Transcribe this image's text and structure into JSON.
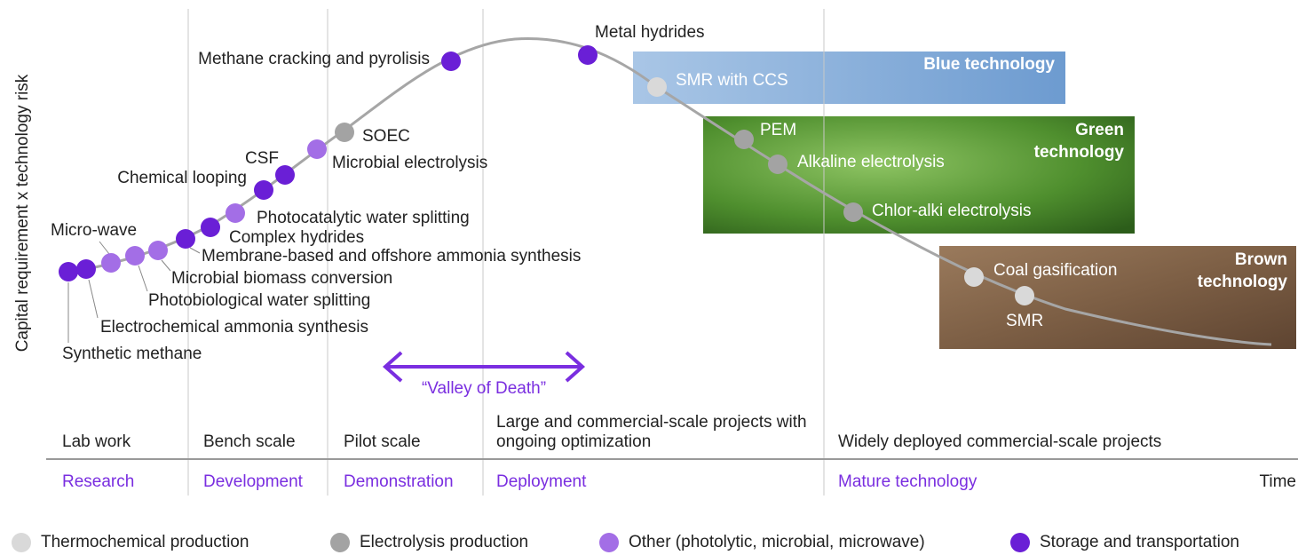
{
  "y_axis_label": "Capital requirement x technology risk",
  "x_axis_label": "Time",
  "valley_label": "“Valley of Death”",
  "stages": [
    {
      "name": "Lab work",
      "phase": "Research"
    },
    {
      "name": "Bench scale",
      "phase": "Development"
    },
    {
      "name": "Pilot scale",
      "phase": "Demonstration"
    },
    {
      "name": "Large and commercial-scale projects with ongoing optimization",
      "phase": "Deployment"
    },
    {
      "name": "Widely deployed commercial-scale projects",
      "phase": "Mature technology"
    }
  ],
  "zones": [
    {
      "label": "Blue technology"
    },
    {
      "label": "Green technology"
    },
    {
      "label": "Brown technology"
    }
  ],
  "legend": [
    {
      "label": "Thermochemical production",
      "color": "#d9d9d9"
    },
    {
      "label": "Electrolysis production",
      "color": "#a3a3a3"
    },
    {
      "label": "Other (photolytic, microbial, microwave)",
      "color": "#a36ee6"
    },
    {
      "label": "Storage and transportation",
      "color": "#6a1fd6"
    }
  ],
  "technologies": [
    {
      "label": "Synthetic methane",
      "group": 3
    },
    {
      "label": "Electrochemical ammonia synthesis",
      "group": 3
    },
    {
      "label": "Micro-wave",
      "group": 2
    },
    {
      "label": "Photobiological water splitting",
      "group": 2
    },
    {
      "label": "Microbial biomass conversion",
      "group": 2
    },
    {
      "label": "Membrane-based and offshore ammonia synthesis",
      "group": 3
    },
    {
      "label": "Complex hydrides",
      "group": 3
    },
    {
      "label": "Photocatalytic water splitting",
      "group": 2
    },
    {
      "label": "Chemical looping",
      "group": 3
    },
    {
      "label": "CSF",
      "group": 3
    },
    {
      "label": "Microbial electrolysis",
      "group": 2
    },
    {
      "label": "SOEC",
      "group": 1
    },
    {
      "label": "Methane  cracking and pyrolisis",
      "group": 3
    },
    {
      "label": "Metal hydrides",
      "group": 3
    },
    {
      "label": "SMR with CCS",
      "group": 0
    },
    {
      "label": "PEM",
      "group": 1
    },
    {
      "label": "Alkaline electrolysis",
      "group": 1
    },
    {
      "label": "Chlor-alki electrolysis",
      "group": 1
    },
    {
      "label": "Coal gasification",
      "group": 0
    },
    {
      "label": "SMR",
      "group": 0
    }
  ]
}
